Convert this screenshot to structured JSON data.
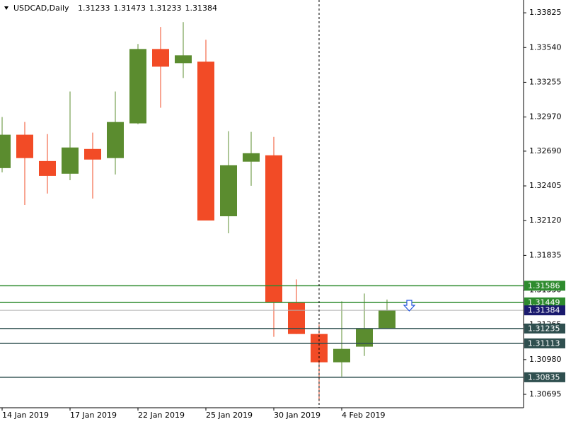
{
  "chart_data": {
    "type": "candlestick",
    "title": "USDCAD,Daily",
    "header_values": [
      1.31233,
      1.31473,
      1.31233,
      1.31384
    ],
    "categories": [
      "14 Jan 2019",
      null,
      null,
      "17 Jan 2019",
      null,
      null,
      "22 Jan 2019",
      null,
      null,
      "25 Jan 2019",
      null,
      null,
      "30 Jan 2019",
      null,
      null,
      "4 Feb 2019",
      null,
      null
    ],
    "open": [
      1.32551,
      1.32825,
      1.32609,
      1.32505,
      1.32708,
      1.32633,
      1.32918,
      1.33528,
      1.33412,
      1.33424,
      1.32156,
      1.32604,
      1.32656,
      1.31452,
      1.3119,
      1.30958,
      1.31086,
      1.31233
    ],
    "high": [
      1.3297,
      1.32929,
      1.3283,
      1.33179,
      1.32842,
      1.33179,
      1.33569,
      1.33709,
      1.33749,
      1.33604,
      1.32854,
      1.32848,
      1.32807,
      1.31638,
      1.31266,
      1.31458,
      1.31522,
      1.31473
    ],
    "low": [
      1.32516,
      1.32249,
      1.32342,
      1.32452,
      1.32301,
      1.32499,
      1.32912,
      1.33046,
      1.3329,
      1.32121,
      1.32016,
      1.32406,
      1.31167,
      1.3119,
      1.30638,
      1.30841,
      1.3101,
      1.31233
    ],
    "close": [
      1.32825,
      1.32633,
      1.32487,
      1.3272,
      1.32621,
      1.32929,
      1.33528,
      1.33383,
      1.33476,
      1.32121,
      1.32574,
      1.32673,
      1.31452,
      1.3119,
      1.30958,
      1.31068,
      1.31231,
      1.31384
    ],
    "up_color": "#5b8c2f",
    "down_color": "#f24b26",
    "ylim": [
      1.30585,
      1.3393
    ],
    "yticks": [
      1.33825,
      {
        "value": 1.3354,
        "label": "1.33540"
      },
      1.33255,
      {
        "value": 1.3297,
        "label": "1.32970"
      },
      {
        "value": 1.3269,
        "label": "1.32690"
      },
      1.32405,
      {
        "value": 1.3212,
        "label": "1.32120"
      },
      1.31835,
      {
        "value": 1.3155,
        "label": "1.31550"
      },
      1.31265,
      {
        "value": 1.3098,
        "label": "1.30980"
      },
      1.30695
    ],
    "levels": [
      {
        "value": 1.31586,
        "color": "#2e8b2e"
      },
      {
        "value": 1.31449,
        "color": "#2e8b2e"
      },
      {
        "value": 1.31235,
        "color": "#2f4f4f"
      },
      {
        "value": 1.31113,
        "color": "#2f4f4f"
      },
      {
        "value": 1.30835,
        "color": "#2f4f4f"
      }
    ],
    "bid": {
      "value": 1.31384,
      "color": "#1a1a6e"
    }
  }
}
